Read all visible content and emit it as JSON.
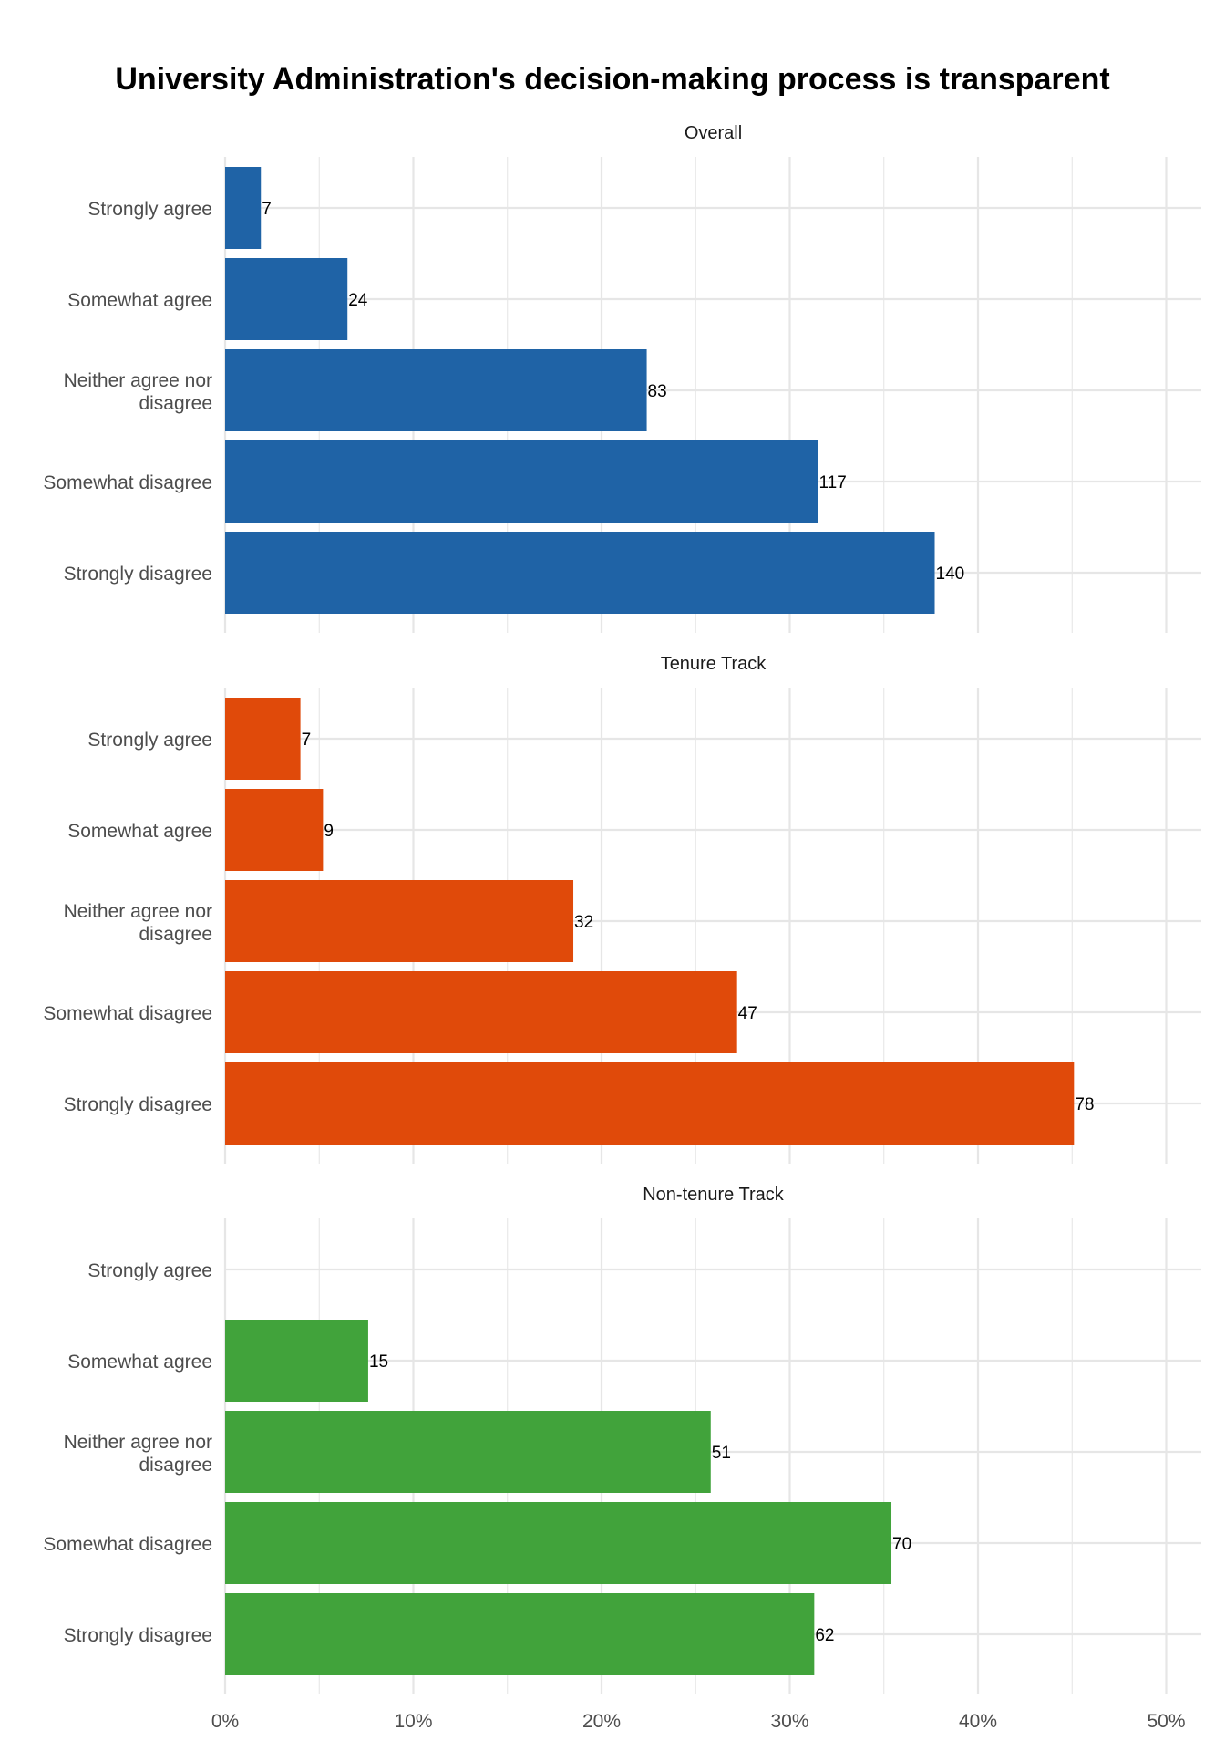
{
  "chart_data": {
    "type": "bar",
    "orientation": "horizontal",
    "title": "University Administration's decision-making process is transparent",
    "xlabel": "",
    "ylabel": "",
    "x_ticks": [
      "0%",
      "10%",
      "20%",
      "30%",
      "40%",
      "50%"
    ],
    "xlim": [
      0,
      0.52
    ],
    "grid": true,
    "categories": [
      "Strongly agree",
      "Somewhat agree",
      "Neither agree nor disagree",
      "Somewhat disagree",
      "Strongly disagree"
    ],
    "facets": [
      {
        "name": "Overall",
        "color": "#1f63a6",
        "counts": [
          7,
          24,
          83,
          117,
          140
        ],
        "percent": [
          0.019,
          0.065,
          0.224,
          0.315,
          0.377
        ]
      },
      {
        "name": "Tenure Track",
        "color": "#e04a0a",
        "counts": [
          7,
          9,
          32,
          47,
          78
        ],
        "percent": [
          0.04,
          0.052,
          0.185,
          0.272,
          0.451
        ]
      },
      {
        "name": "Non-tenure Track",
        "color": "#41a33b",
        "counts": [
          0,
          15,
          51,
          70,
          62
        ],
        "percent": [
          0.0,
          0.076,
          0.258,
          0.354,
          0.313
        ]
      }
    ]
  }
}
